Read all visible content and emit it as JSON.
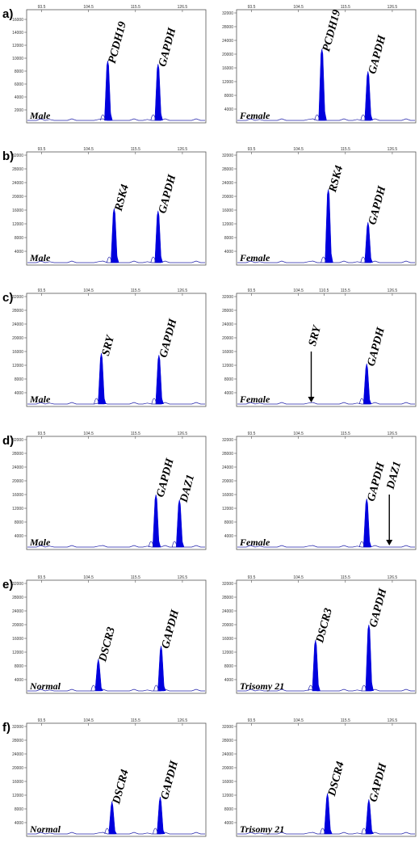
{
  "chart_data": [
    {
      "panel": "a)",
      "side": "left",
      "type": "area",
      "x_ticks": [
        "93.5",
        "104.5",
        "115.5",
        "126.5"
      ],
      "y_ticks": [
        "2000",
        "4000",
        "6000",
        "8000",
        "10000",
        "12000",
        "14000",
        "16000"
      ],
      "ylim": [
        0,
        17000
      ],
      "sample": "Male",
      "peaks": [
        {
          "label": "PCDH19",
          "x": 109.0,
          "height": 9600
        },
        {
          "label": "GAPDH",
          "x": 120.8,
          "height": 9100
        }
      ]
    },
    {
      "panel": "a)",
      "side": "right",
      "type": "area",
      "x_ticks": [
        "93.5",
        "104.5",
        "115.5",
        "126.5"
      ],
      "y_ticks": [
        "4000",
        "8000",
        "12000",
        "16000",
        "20000",
        "24000",
        "28000",
        "32000"
      ],
      "ylim": [
        0,
        32000
      ],
      "sample": "Female",
      "peaks": [
        {
          "label": "PCDH19",
          "x": 110.0,
          "height": 21500
        },
        {
          "label": "GAPDH",
          "x": 120.8,
          "height": 15000
        }
      ]
    },
    {
      "panel": "b)",
      "side": "left",
      "type": "area",
      "x_ticks": [
        "93.5",
        "104.5",
        "115.5",
        "126.5"
      ],
      "y_ticks": [
        "4000",
        "8000",
        "12000",
        "16000",
        "20000",
        "24000",
        "28000",
        "32000"
      ],
      "ylim": [
        0,
        32000
      ],
      "sample": "Male",
      "peaks": [
        {
          "label": "RSK4",
          "x": 110.5,
          "height": 16500
        },
        {
          "label": "GAPDH",
          "x": 120.8,
          "height": 15800
        }
      ]
    },
    {
      "panel": "b)",
      "side": "right",
      "type": "area",
      "x_ticks": [
        "93.5",
        "104.5",
        "115.5",
        "126.5"
      ],
      "y_ticks": [
        "4000",
        "8000",
        "12000",
        "16000",
        "20000",
        "24000",
        "28000",
        "32000"
      ],
      "ylim": [
        0,
        32000
      ],
      "sample": "Female",
      "peaks": [
        {
          "label": "RSK4",
          "x": 111.5,
          "height": 22000
        },
        {
          "label": "GAPDH",
          "x": 120.8,
          "height": 12500
        }
      ]
    },
    {
      "panel": "c)",
      "side": "left",
      "type": "area",
      "x_ticks": [
        "93.5",
        "104.5",
        "115.5",
        "126.5"
      ],
      "y_ticks": [
        "4000",
        "8000",
        "12000",
        "16000",
        "20000",
        "24000",
        "28000",
        "32000"
      ],
      "ylim": [
        0,
        32000
      ],
      "sample": "Male",
      "peaks": [
        {
          "label": "SRY",
          "x": 107.5,
          "height": 15500
        },
        {
          "label": "GAPDH",
          "x": 121.0,
          "height": 15000
        }
      ]
    },
    {
      "panel": "c)",
      "side": "right",
      "type": "area",
      "x_ticks": [
        "93.5",
        "104.5",
        "110.5",
        "115.5",
        "126.5"
      ],
      "y_ticks": [
        "4000",
        "8000",
        "12000",
        "16000",
        "20000",
        "24000",
        "28000",
        "32000"
      ],
      "ylim": [
        0,
        32000
      ],
      "sample": "Female",
      "peaks": [
        {
          "label": "GAPDH",
          "x": 120.5,
          "height": 12500
        }
      ],
      "absent": [
        {
          "label": "SRY",
          "x": 107.5
        }
      ]
    },
    {
      "panel": "d)",
      "side": "left",
      "type": "area",
      "x_ticks": [
        "93.5",
        "104.5",
        "115.5",
        "126.5"
      ],
      "y_ticks": [
        "4000",
        "8000",
        "12000",
        "16000",
        "20000",
        "24000",
        "28000",
        "32000"
      ],
      "ylim": [
        0,
        32000
      ],
      "sample": "Male",
      "peaks": [
        {
          "label": "GAPDH",
          "x": 120.3,
          "height": 16000
        },
        {
          "label": "DAZ1",
          "x": 125.8,
          "height": 14500
        }
      ]
    },
    {
      "panel": "d)",
      "side": "right",
      "type": "area",
      "x_ticks": [
        "93.5",
        "104.5",
        "115.5",
        "126.5"
      ],
      "y_ticks": [
        "4000",
        "8000",
        "12000",
        "16000",
        "20000",
        "24000",
        "28000",
        "32000"
      ],
      "ylim": [
        0,
        32000
      ],
      "sample": "Female",
      "peaks": [
        {
          "label": "GAPDH",
          "x": 120.5,
          "height": 14800
        }
      ],
      "absent": [
        {
          "label": "DAZ1",
          "x": 125.8
        }
      ]
    },
    {
      "panel": "e)",
      "side": "left",
      "type": "area",
      "x_ticks": [
        "93.5",
        "104.5",
        "115.5",
        "126.5"
      ],
      "y_ticks": [
        "4000",
        "8000",
        "12000",
        "16000",
        "20000",
        "24000",
        "28000",
        "32000"
      ],
      "ylim": [
        0,
        32000
      ],
      "sample": "Normal",
      "peaks": [
        {
          "label": "DSCR3",
          "x": 106.8,
          "height": 10000
        },
        {
          "label": "GAPDH",
          "x": 121.5,
          "height": 13800
        }
      ]
    },
    {
      "panel": "e)",
      "side": "right",
      "type": "area",
      "x_ticks": [
        "93.5",
        "104.5",
        "115.5",
        "126.5"
      ],
      "y_ticks": [
        "4000",
        "8000",
        "12000",
        "16000",
        "20000",
        "24000",
        "28000",
        "32000"
      ],
      "ylim": [
        0,
        32000
      ],
      "sample": "Trisomy 21",
      "peaks": [
        {
          "label": "DSCR3",
          "x": 108.5,
          "height": 15500
        },
        {
          "label": "GAPDH",
          "x": 121.0,
          "height": 20000
        }
      ]
    },
    {
      "panel": "f)",
      "side": "left",
      "type": "area",
      "x_ticks": [
        "93.5",
        "104.5",
        "115.5",
        "126.5"
      ],
      "y_ticks": [
        "4000",
        "8000",
        "12000",
        "16000",
        "20000",
        "24000",
        "28000",
        "32000"
      ],
      "ylim": [
        0,
        32000
      ],
      "sample": "Normal",
      "peaks": [
        {
          "label": "DSCR4",
          "x": 110.0,
          "height": 10200
        },
        {
          "label": "GAPDH",
          "x": 121.3,
          "height": 11500
        }
      ]
    },
    {
      "panel": "f)",
      "side": "right",
      "type": "area",
      "x_ticks": [
        "93.5",
        "104.5",
        "115.5",
        "126.5"
      ],
      "y_ticks": [
        "4000",
        "8000",
        "12000",
        "16000",
        "20000",
        "24000",
        "28000",
        "32000"
      ],
      "ylim": [
        0,
        32000
      ],
      "sample": "Trisomy 21",
      "peaks": [
        {
          "label": "DSCR4",
          "x": 111.3,
          "height": 12500
        },
        {
          "label": "GAPDH",
          "x": 121.0,
          "height": 10800
        }
      ]
    }
  ],
  "colors": {
    "peak_fill": "#0000dd",
    "baseline": "#2222aa",
    "axis": "#555555",
    "tick_text": "#333333",
    "arrow": "#000000"
  }
}
